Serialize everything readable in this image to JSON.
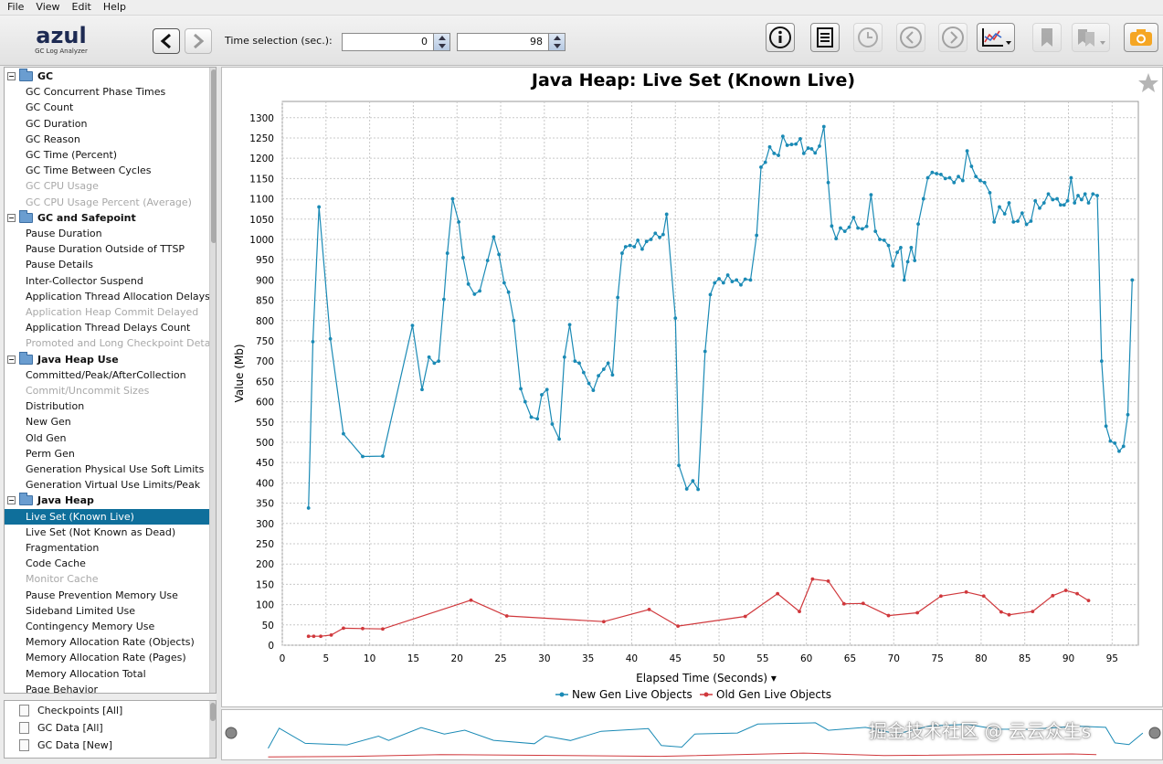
{
  "menu": [
    "File",
    "View",
    "Edit",
    "Help"
  ],
  "logo": {
    "brand": "azul",
    "subtitle": "GC Log Analyzer"
  },
  "time_selection": {
    "label": "Time selection (sec.):",
    "start": "0",
    "end": "98"
  },
  "tree": {
    "groups": [
      {
        "label": "GC",
        "items": [
          {
            "label": "GC Concurrent Phase Times",
            "enabled": true
          },
          {
            "label": "GC Count",
            "enabled": true
          },
          {
            "label": "GC Duration",
            "enabled": true
          },
          {
            "label": "GC Reason",
            "enabled": true
          },
          {
            "label": "GC Time (Percent)",
            "enabled": true
          },
          {
            "label": "GC Time Between Cycles",
            "enabled": true
          },
          {
            "label": "GC CPU Usage",
            "enabled": false
          },
          {
            "label": "GC CPU Usage Percent (Average)",
            "enabled": false
          }
        ]
      },
      {
        "label": "GC and Safepoint",
        "items": [
          {
            "label": "Pause Duration",
            "enabled": true
          },
          {
            "label": "Pause Duration Outside of TTSP",
            "enabled": true
          },
          {
            "label": "Pause Details",
            "enabled": true
          },
          {
            "label": "Inter-Collector Suspend",
            "enabled": true
          },
          {
            "label": "Application Thread Allocation Delays",
            "enabled": true
          },
          {
            "label": "Application Heap Commit Delayed",
            "enabled": false
          },
          {
            "label": "Application Thread Delays Count",
            "enabled": true
          },
          {
            "label": "Promoted and Long Checkpoint Details",
            "enabled": false
          }
        ]
      },
      {
        "label": "Java Heap Use",
        "items": [
          {
            "label": "Committed/Peak/AfterCollection",
            "enabled": true
          },
          {
            "label": "Commit/Uncommit Sizes",
            "enabled": false
          },
          {
            "label": "Distribution",
            "enabled": true
          },
          {
            "label": "New Gen",
            "enabled": true
          },
          {
            "label": "Old Gen",
            "enabled": true
          },
          {
            "label": "Perm Gen",
            "enabled": true
          },
          {
            "label": "Generation Physical Use Soft Limits",
            "enabled": true
          },
          {
            "label": "Generation Virtual Use Limits/Peak",
            "enabled": true
          }
        ]
      },
      {
        "label": "Java Heap",
        "items": [
          {
            "label": "Live Set (Known Live)",
            "enabled": true,
            "selected": true
          },
          {
            "label": "Live Set (Not Known as Dead)",
            "enabled": true
          },
          {
            "label": "Fragmentation",
            "enabled": true
          },
          {
            "label": "Code Cache",
            "enabled": true
          },
          {
            "label": "Monitor Cache",
            "enabled": false
          },
          {
            "label": "Pause Prevention Memory Use",
            "enabled": true
          },
          {
            "label": "Sideband Limited Use",
            "enabled": true
          },
          {
            "label": "Contingency Memory Use",
            "enabled": true
          },
          {
            "label": "Memory Allocation Rate (Objects)",
            "enabled": true
          },
          {
            "label": "Memory Allocation Rate (Pages)",
            "enabled": true
          },
          {
            "label": "Memory Allocation Total",
            "enabled": true
          },
          {
            "label": "Page Behavior",
            "enabled": true
          }
        ]
      }
    ]
  },
  "sources": [
    "Checkpoints [All]",
    "GC Data [All]",
    "GC Data [New]"
  ],
  "watermark": "掘金技术社区 @ 云云众生s",
  "chart_data": {
    "type": "line",
    "title": "Java Heap: Live Set (Known Live)",
    "xlabel": "Elapsed Time (Seconds) ▾",
    "ylabel": "Value (Mb)",
    "xlim": [
      0,
      98
    ],
    "ylim": [
      0,
      1340
    ],
    "xticks": [
      0,
      5,
      10,
      15,
      20,
      25,
      30,
      35,
      40,
      45,
      50,
      55,
      60,
      65,
      70,
      75,
      80,
      85,
      90,
      95
    ],
    "yticks": [
      0,
      50,
      100,
      150,
      200,
      250,
      300,
      350,
      400,
      450,
      500,
      550,
      600,
      650,
      700,
      750,
      800,
      850,
      900,
      950,
      1000,
      1050,
      1100,
      1150,
      1200,
      1250,
      1300
    ],
    "grid": true,
    "legend": "bottom-center",
    "series": [
      {
        "name": "New Gen Live Objects",
        "color": "#1a8ab5",
        "points": [
          [
            3.0,
            338
          ],
          [
            3.5,
            748
          ],
          [
            4.2,
            1080
          ],
          [
            5.5,
            755
          ],
          [
            7.0,
            521
          ],
          [
            9.2,
            465
          ],
          [
            11.5,
            466
          ],
          [
            14.9,
            788
          ],
          [
            16.0,
            630
          ],
          [
            16.8,
            710
          ],
          [
            17.4,
            695
          ],
          [
            17.9,
            700
          ],
          [
            18.5,
            852
          ],
          [
            18.9,
            966
          ],
          [
            19.5,
            1100
          ],
          [
            20.2,
            1043
          ],
          [
            20.7,
            955
          ],
          [
            21.3,
            890
          ],
          [
            22.0,
            865
          ],
          [
            22.6,
            873
          ],
          [
            23.5,
            948
          ],
          [
            24.2,
            1006
          ],
          [
            24.8,
            963
          ],
          [
            25.4,
            893
          ],
          [
            25.9,
            870
          ],
          [
            26.5,
            800
          ],
          [
            27.3,
            632
          ],
          [
            27.8,
            600
          ],
          [
            28.5,
            562
          ],
          [
            29.2,
            558
          ],
          [
            29.7,
            617
          ],
          [
            30.3,
            630
          ],
          [
            30.9,
            545
          ],
          [
            31.7,
            508
          ],
          [
            32.3,
            710
          ],
          [
            32.9,
            790
          ],
          [
            33.5,
            700
          ],
          [
            34.0,
            695
          ],
          [
            34.5,
            672
          ],
          [
            35.1,
            645
          ],
          [
            35.6,
            628
          ],
          [
            36.2,
            664
          ],
          [
            36.8,
            680
          ],
          [
            37.3,
            695
          ],
          [
            37.8,
            666
          ],
          [
            38.4,
            857
          ],
          [
            38.9,
            966
          ],
          [
            39.3,
            982
          ],
          [
            39.8,
            985
          ],
          [
            40.3,
            982
          ],
          [
            40.7,
            998
          ],
          [
            41.2,
            976
          ],
          [
            41.7,
            995
          ],
          [
            42.2,
            1000
          ],
          [
            42.7,
            1015
          ],
          [
            43.2,
            1005
          ],
          [
            43.6,
            1012
          ],
          [
            44.0,
            1062
          ],
          [
            45.0,
            806
          ],
          [
            45.4,
            443
          ],
          [
            46.3,
            385
          ],
          [
            47.0,
            405
          ],
          [
            47.6,
            384
          ],
          [
            48.4,
            724
          ],
          [
            49.0,
            864
          ],
          [
            49.5,
            893
          ],
          [
            50.0,
            903
          ],
          [
            50.5,
            893
          ],
          [
            51.0,
            912
          ],
          [
            51.5,
            896
          ],
          [
            52.0,
            900
          ],
          [
            52.5,
            888
          ],
          [
            53.0,
            902
          ],
          [
            53.6,
            900
          ],
          [
            54.3,
            1010
          ],
          [
            54.8,
            1178
          ],
          [
            55.3,
            1190
          ],
          [
            55.8,
            1228
          ],
          [
            56.3,
            1212
          ],
          [
            56.8,
            1207
          ],
          [
            57.3,
            1254
          ],
          [
            57.8,
            1232
          ],
          [
            58.3,
            1234
          ],
          [
            58.8,
            1235
          ],
          [
            59.3,
            1248
          ],
          [
            59.7,
            1212
          ],
          [
            60.2,
            1225
          ],
          [
            60.6,
            1223
          ],
          [
            61.0,
            1213
          ],
          [
            61.5,
            1230
          ],
          [
            62.0,
            1278
          ],
          [
            62.5,
            1140
          ],
          [
            62.9,
            1033
          ],
          [
            63.4,
            1002
          ],
          [
            63.9,
            1028
          ],
          [
            64.4,
            1020
          ],
          [
            64.9,
            1030
          ],
          [
            65.4,
            1054
          ],
          [
            65.9,
            1028
          ],
          [
            66.4,
            1026
          ],
          [
            66.9,
            1032
          ],
          [
            67.4,
            1110
          ],
          [
            67.9,
            1020
          ],
          [
            68.4,
            1000
          ],
          [
            68.9,
            998
          ],
          [
            69.4,
            985
          ],
          [
            69.9,
            935
          ],
          [
            70.4,
            968
          ],
          [
            70.8,
            980
          ],
          [
            71.2,
            900
          ],
          [
            71.6,
            945
          ],
          [
            72.0,
            980
          ],
          [
            72.4,
            948
          ],
          [
            72.8,
            1038
          ],
          [
            73.4,
            1100
          ],
          [
            73.9,
            1152
          ],
          [
            74.4,
            1165
          ],
          [
            74.9,
            1162
          ],
          [
            75.4,
            1160
          ],
          [
            75.9,
            1150
          ],
          [
            76.4,
            1152
          ],
          [
            76.9,
            1140
          ],
          [
            77.4,
            1155
          ],
          [
            77.9,
            1145
          ],
          [
            78.4,
            1218
          ],
          [
            78.9,
            1180
          ],
          [
            79.4,
            1155
          ],
          [
            79.9,
            1145
          ],
          [
            80.4,
            1140
          ],
          [
            81.0,
            1115
          ],
          [
            81.5,
            1043
          ],
          [
            82.1,
            1080
          ],
          [
            82.7,
            1063
          ],
          [
            83.2,
            1090
          ],
          [
            83.7,
            1043
          ],
          [
            84.2,
            1045
          ],
          [
            84.7,
            1065
          ],
          [
            85.2,
            1037
          ],
          [
            85.7,
            1045
          ],
          [
            86.2,
            1095
          ],
          [
            86.7,
            1077
          ],
          [
            87.2,
            1090
          ],
          [
            87.7,
            1112
          ],
          [
            88.2,
            1098
          ],
          [
            88.7,
            1100
          ],
          [
            89.1,
            1085
          ],
          [
            89.5,
            1085
          ],
          [
            89.9,
            1095
          ],
          [
            90.3,
            1152
          ],
          [
            90.7,
            1090
          ],
          [
            91.1,
            1108
          ],
          [
            91.5,
            1098
          ],
          [
            91.9,
            1112
          ],
          [
            92.3,
            1090
          ],
          [
            92.8,
            1112
          ],
          [
            93.3,
            1108
          ],
          [
            93.8,
            700
          ],
          [
            94.3,
            540
          ],
          [
            94.8,
            503
          ],
          [
            95.3,
            498
          ],
          [
            95.8,
            478
          ],
          [
            96.3,
            490
          ],
          [
            96.8,
            568
          ],
          [
            97.3,
            900
          ]
        ]
      },
      {
        "name": "Old Gen Live Objects",
        "color": "#d0383c",
        "points": [
          [
            3.0,
            22
          ],
          [
            3.6,
            22
          ],
          [
            4.4,
            22
          ],
          [
            5.6,
            25
          ],
          [
            7.0,
            42
          ],
          [
            9.2,
            41
          ],
          [
            11.5,
            40
          ],
          [
            21.6,
            111
          ],
          [
            25.7,
            72
          ],
          [
            36.8,
            58
          ],
          [
            42.0,
            88
          ],
          [
            45.3,
            47
          ],
          [
            53.0,
            71
          ],
          [
            56.7,
            127
          ],
          [
            59.2,
            83
          ],
          [
            60.7,
            163
          ],
          [
            62.5,
            158
          ],
          [
            64.3,
            102
          ],
          [
            66.5,
            103
          ],
          [
            69.4,
            73
          ],
          [
            72.7,
            80
          ],
          [
            75.4,
            121
          ],
          [
            78.3,
            131
          ],
          [
            80.3,
            121
          ],
          [
            82.3,
            82
          ],
          [
            83.2,
            75
          ],
          [
            85.9,
            83
          ],
          [
            88.2,
            122
          ],
          [
            89.7,
            135
          ],
          [
            91.0,
            127
          ],
          [
            92.3,
            110
          ]
        ]
      }
    ]
  },
  "overview_data": {
    "series": [
      {
        "name": "New Gen Live Objects",
        "color": "#1a8ab5",
        "points": [
          [
            3,
            338
          ],
          [
            4.2,
            1080
          ],
          [
            7,
            521
          ],
          [
            11.5,
            466
          ],
          [
            14.9,
            788
          ],
          [
            16,
            630
          ],
          [
            19.5,
            1100
          ],
          [
            22,
            865
          ],
          [
            24.2,
            1006
          ],
          [
            27.3,
            632
          ],
          [
            31.7,
            508
          ],
          [
            32.9,
            790
          ],
          [
            35.6,
            628
          ],
          [
            38.9,
            966
          ],
          [
            44,
            1062
          ],
          [
            45.4,
            443
          ],
          [
            47.6,
            384
          ],
          [
            49,
            864
          ],
          [
            53.6,
            900
          ],
          [
            55.8,
            1228
          ],
          [
            62,
            1278
          ],
          [
            63.4,
            1002
          ],
          [
            67.4,
            1110
          ],
          [
            69.9,
            935
          ],
          [
            71.2,
            900
          ],
          [
            74.4,
            1165
          ],
          [
            78.4,
            1218
          ],
          [
            81.5,
            1043
          ],
          [
            85.2,
            1037
          ],
          [
            90.3,
            1152
          ],
          [
            93.3,
            1108
          ],
          [
            94.3,
            540
          ],
          [
            95.8,
            478
          ],
          [
            97.3,
            900
          ]
        ]
      },
      {
        "name": "Old Gen Live Objects",
        "color": "#d0383c",
        "points": [
          [
            3,
            22
          ],
          [
            11.5,
            40
          ],
          [
            21.6,
            111
          ],
          [
            45.3,
            47
          ],
          [
            60.7,
            163
          ],
          [
            69.4,
            73
          ],
          [
            89.7,
            135
          ],
          [
            92.3,
            110
          ]
        ]
      }
    ]
  }
}
